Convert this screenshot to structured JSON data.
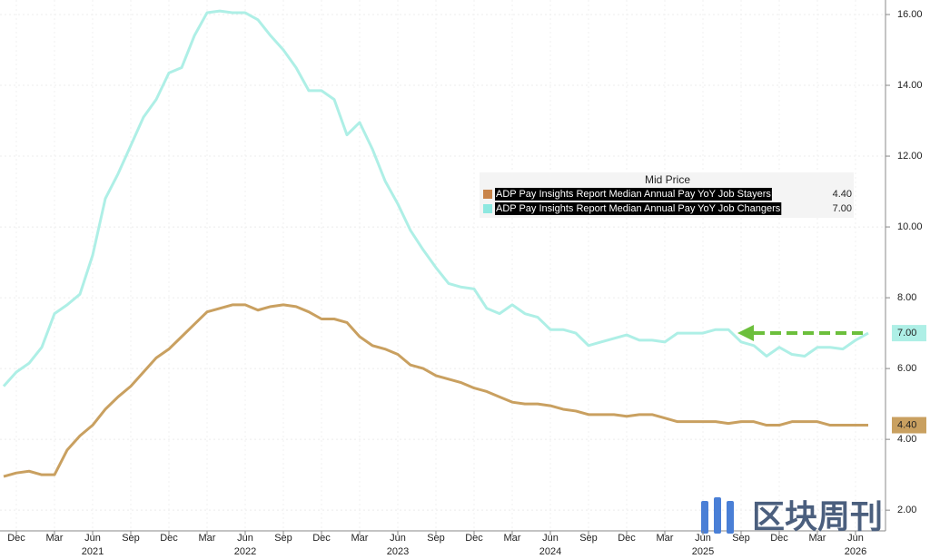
{
  "chart_data": {
    "type": "line",
    "legend_title": "Mid Price",
    "x": [
      "2020-11",
      "2020-12",
      "2021-01",
      "2021-02",
      "2021-03",
      "2021-04",
      "2021-05",
      "2021-06",
      "2021-07",
      "2021-08",
      "2021-09",
      "2021-10",
      "2021-11",
      "2021-12",
      "2022-01",
      "2022-02",
      "2022-03",
      "2022-04",
      "2022-05",
      "2022-06",
      "2022-07",
      "2022-08",
      "2022-09",
      "2022-10",
      "2022-11",
      "2022-12",
      "2023-01",
      "2023-02",
      "2023-03",
      "2023-04",
      "2023-05",
      "2023-06",
      "2023-07",
      "2023-08",
      "2023-09",
      "2023-10",
      "2023-11",
      "2023-12",
      "2024-01",
      "2024-02",
      "2024-03",
      "2024-04",
      "2024-05",
      "2024-06",
      "2024-07",
      "2024-08",
      "2024-09",
      "2024-10",
      "2024-11",
      "2024-12",
      "2025-01",
      "2025-02",
      "2025-03",
      "2025-04",
      "2025-05",
      "2025-06",
      "2025-07",
      "2025-08",
      "2025-09",
      "2025-10",
      "2025-11",
      "2025-12",
      "2026-01",
      "2026-02",
      "2026-03",
      "2026-04",
      "2026-05",
      "2026-06",
      "2026-07"
    ],
    "series": [
      {
        "name": "ADP Pay Insights Report Median Annual Pay YoY Job Stayers",
        "color": "#c9a060",
        "legend_color": "#c8844a",
        "last_label": "4.40",
        "values": [
          2.95,
          3.05,
          3.1,
          3.0,
          3.0,
          3.7,
          4.1,
          4.4,
          4.85,
          5.2,
          5.5,
          5.9,
          6.3,
          6.55,
          6.9,
          7.25,
          7.6,
          7.7,
          7.8,
          7.8,
          7.65,
          7.75,
          7.8,
          7.75,
          7.6,
          7.4,
          7.4,
          7.3,
          6.9,
          6.65,
          6.55,
          6.4,
          6.1,
          6.0,
          5.8,
          5.7,
          5.6,
          5.45,
          5.35,
          5.2,
          5.05,
          5.0,
          5.0,
          4.95,
          4.85,
          4.8,
          4.7,
          4.7,
          4.7,
          4.65,
          4.7,
          4.7,
          4.6,
          4.5,
          4.5,
          4.5,
          4.5,
          4.45,
          4.5,
          4.5,
          4.4,
          4.4,
          4.5,
          4.5,
          4.5,
          4.4,
          4.4,
          4.4,
          4.4
        ]
      },
      {
        "name": "ADP Pay Insights Report Median Annual Pay YoY Job Changers",
        "color": "#aeefe6",
        "legend_color": "#8ee8e0",
        "last_label": "7.00",
        "values": [
          5.5,
          5.9,
          6.15,
          6.6,
          7.55,
          7.8,
          8.1,
          9.2,
          10.8,
          11.5,
          12.3,
          13.1,
          13.6,
          14.35,
          14.5,
          15.4,
          16.05,
          16.1,
          16.05,
          16.05,
          15.85,
          15.4,
          15.0,
          14.5,
          13.85,
          13.85,
          13.6,
          12.6,
          12.95,
          12.2,
          11.3,
          10.65,
          9.9,
          9.35,
          8.85,
          8.4,
          8.3,
          8.25,
          7.7,
          7.55,
          7.8,
          7.55,
          7.45,
          7.1,
          7.1,
          7.0,
          6.65,
          6.75,
          6.85,
          6.95,
          6.8,
          6.8,
          6.75,
          7.0,
          7.0,
          7.0,
          7.1,
          7.1,
          6.75,
          6.65,
          6.35,
          6.6,
          6.4,
          6.35,
          6.6,
          6.6,
          6.55,
          6.8,
          7.0
        ]
      }
    ],
    "ylim": [
      0.62,
      16.41
    ],
    "yticks": [
      {
        "value": 2,
        "label": "2.00"
      },
      {
        "value": 4,
        "label": "4.00"
      },
      {
        "value": 6,
        "label": "6.00"
      },
      {
        "value": 8,
        "label": "8.00"
      },
      {
        "value": 10,
        "label": "10.00"
      },
      {
        "value": 12,
        "label": "12.00"
      },
      {
        "value": 14,
        "label": "14.00"
      },
      {
        "value": 16,
        "label": "16.00"
      }
    ],
    "xticks": [
      {
        "value": "2020-12",
        "label": "Dec"
      },
      {
        "value": "2021-03",
        "label": "Mar"
      },
      {
        "value": "2021-06",
        "label": "Jun"
      },
      {
        "value": "2021-09",
        "label": "Sep"
      },
      {
        "value": "2021-12",
        "label": "Dec"
      },
      {
        "value": "2022-03",
        "label": "Mar"
      },
      {
        "value": "2022-06",
        "label": "Jun"
      },
      {
        "value": "2022-09",
        "label": "Sep"
      },
      {
        "value": "2022-12",
        "label": "Dec"
      },
      {
        "value": "2023-03",
        "label": "Mar"
      },
      {
        "value": "2023-06",
        "label": "Jun"
      },
      {
        "value": "2023-09",
        "label": "Sep"
      },
      {
        "value": "2023-12",
        "label": "Dec"
      },
      {
        "value": "2024-03",
        "label": "Mar"
      },
      {
        "value": "2024-06",
        "label": "Jun"
      },
      {
        "value": "2024-09",
        "label": "Sep"
      },
      {
        "value": "2024-12",
        "label": "Dec"
      },
      {
        "value": "2025-03",
        "label": "Mar"
      },
      {
        "value": "2025-06",
        "label": "Jun"
      },
      {
        "value": "2025-09",
        "label": "Sep"
      },
      {
        "value": "2025-12",
        "label": "Dec"
      },
      {
        "value": "2026-03",
        "label": "Mar"
      },
      {
        "value": "2026-06",
        "label": "Jun"
      }
    ],
    "year_ticks": [
      {
        "value": "2021-06",
        "label": "2021"
      },
      {
        "value": "2022-06",
        "label": "2022"
      },
      {
        "value": "2023-06",
        "label": "2023"
      },
      {
        "value": "2024-06",
        "label": "2024"
      },
      {
        "value": "2025-06",
        "label": "2025"
      },
      {
        "value": "2026-06",
        "label": "2026"
      }
    ],
    "grid": true,
    "watermark": "区块周刊"
  }
}
